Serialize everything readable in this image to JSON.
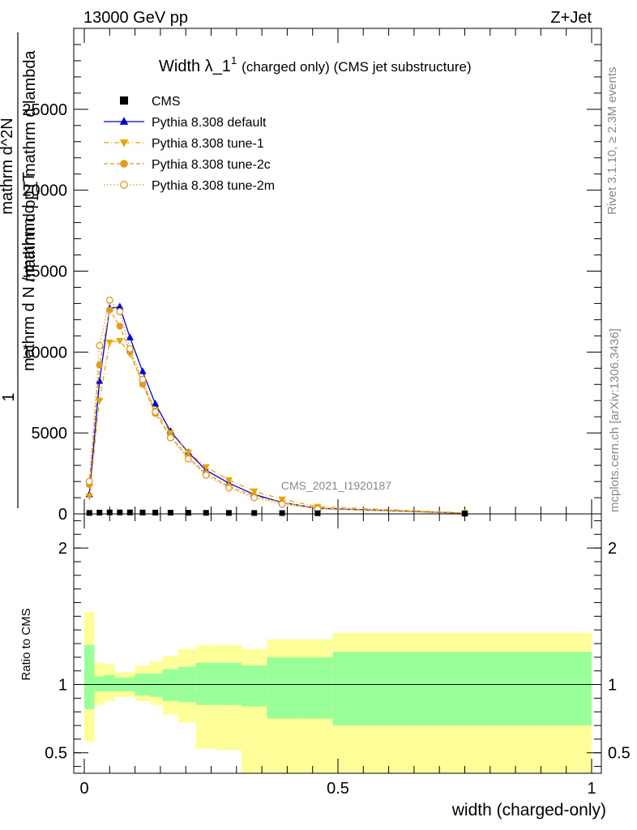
{
  "header": {
    "left": "13000 GeV pp",
    "right": "Z+Jet"
  },
  "side_labels": {
    "rivet": "Rivet 3.1.10, ≥ 2.3M events",
    "mcplots": "mcplots.cern.ch [arXiv:1306.3436]"
  },
  "chart_data": [
    {
      "type": "scatter",
      "title_main": "Width λ_1",
      "title_sup": "1",
      "title_rest": "(charged only) (CMS jet substructure)",
      "watermark": "CMS_2021_I1920187",
      "ylabel_lines": [
        "1",
        "mathrm d N / mathrm d p_T",
        "mathrm d^2N",
        "mathrm d p_T mathrm d lambda"
      ],
      "ylabel_sub": "T",
      "xlim": [
        0,
        1
      ],
      "ylim": [
        0,
        30000
      ],
      "yticks": [
        {
          "v": 0,
          "label": "0"
        },
        {
          "v": 5000,
          "label": "5000"
        },
        {
          "v": 10000,
          "label": "10000"
        },
        {
          "v": 15000,
          "label": "15000"
        },
        {
          "v": 20000,
          "label": "20000"
        },
        {
          "v": 25000,
          "label": "25000"
        }
      ],
      "x": [
        0.01,
        0.03,
        0.05,
        0.07,
        0.09,
        0.115,
        0.14,
        0.17,
        0.205,
        0.24,
        0.285,
        0.335,
        0.39,
        0.46,
        0.75
      ],
      "series": [
        {
          "name": "CMS",
          "color": "#000000",
          "marker": "square",
          "values": [
            60,
            80,
            90,
            90,
            90,
            85,
            80,
            75,
            70,
            65,
            60,
            55,
            50,
            40,
            20
          ]
        },
        {
          "name": "Pythia 8.308 default",
          "color": "#0000cc",
          "marker": "triangle-up",
          "line": "solid",
          "values": [
            1200,
            8200,
            12700,
            12800,
            10900,
            8800,
            6800,
            5100,
            3800,
            2700,
            1900,
            1200,
            700,
            350,
            40
          ]
        },
        {
          "name": "Pythia 8.308 tune-1",
          "color": "#e6a800",
          "marker": "triangle-down",
          "line": "dashdot",
          "values": [
            1100,
            7000,
            10600,
            10700,
            9900,
            8100,
            6400,
            5000,
            3800,
            2900,
            2100,
            1400,
            900,
            450,
            60
          ]
        },
        {
          "name": "Pythia 8.308 tune-2c",
          "color": "#e09a20",
          "marker": "circle",
          "line": "dashed",
          "values": [
            1800,
            9200,
            12600,
            11600,
            10000,
            8000,
            6200,
            4800,
            3500,
            2500,
            1700,
            1100,
            700,
            350,
            45
          ]
        },
        {
          "name": "Pythia 8.308 tune-2m",
          "color": "#e09a20",
          "marker": "circle-open",
          "line": "dotted",
          "values": [
            2000,
            10400,
            13200,
            12500,
            10200,
            8300,
            6300,
            4700,
            3400,
            2400,
            1600,
            1000,
            600,
            300,
            40
          ]
        }
      ]
    },
    {
      "type": "area",
      "ylabel": "Ratio to CMS",
      "xlabel": "width (charged-only)",
      "xlim": [
        0,
        1
      ],
      "ylim": [
        0.35,
        2.25
      ],
      "xticks": [
        {
          "v": 0,
          "label": "0"
        },
        {
          "v": 0.5,
          "label": "0.5"
        },
        {
          "v": 1,
          "label": "1"
        }
      ],
      "yticks": [
        {
          "v": 0.5,
          "label": "0.5"
        },
        {
          "v": 1,
          "label": "1"
        },
        {
          "v": 2,
          "label": "2"
        }
      ],
      "bins": [
        {
          "x0": 0.0,
          "x1": 0.02,
          "g_lo": 0.82,
          "g_hi": 1.29,
          "y_lo": 0.58,
          "y_hi": 1.53
        },
        {
          "x0": 0.02,
          "x1": 0.04,
          "g_lo": 0.95,
          "g_hi": 1.06,
          "y_lo": 0.85,
          "y_hi": 1.16
        },
        {
          "x0": 0.04,
          "x1": 0.06,
          "g_lo": 0.95,
          "g_hi": 1.07,
          "y_lo": 0.88,
          "y_hi": 1.15
        },
        {
          "x0": 0.06,
          "x1": 0.08,
          "g_lo": 0.95,
          "g_hi": 1.05,
          "y_lo": 0.91,
          "y_hi": 1.09
        },
        {
          "x0": 0.08,
          "x1": 0.1,
          "g_lo": 0.95,
          "g_hi": 1.05,
          "y_lo": 0.91,
          "y_hi": 1.09
        },
        {
          "x0": 0.1,
          "x1": 0.13,
          "g_lo": 0.92,
          "g_hi": 1.08,
          "y_lo": 0.88,
          "y_hi": 1.14
        },
        {
          "x0": 0.13,
          "x1": 0.155,
          "g_lo": 0.91,
          "g_hi": 1.08,
          "y_lo": 0.85,
          "y_hi": 1.17
        },
        {
          "x0": 0.155,
          "x1": 0.185,
          "g_lo": 0.88,
          "g_hi": 1.11,
          "y_lo": 0.78,
          "y_hi": 1.21
        },
        {
          "x0": 0.185,
          "x1": 0.22,
          "g_lo": 0.87,
          "g_hi": 1.13,
          "y_lo": 0.72,
          "y_hi": 1.26
        },
        {
          "x0": 0.22,
          "x1": 0.26,
          "g_lo": 0.85,
          "g_hi": 1.16,
          "y_lo": 0.53,
          "y_hi": 1.29
        },
        {
          "x0": 0.26,
          "x1": 0.31,
          "g_lo": 0.85,
          "g_hi": 1.16,
          "y_lo": 0.52,
          "y_hi": 1.29
        },
        {
          "x0": 0.31,
          "x1": 0.36,
          "g_lo": 0.84,
          "g_hi": 1.14,
          "y_lo": 0.35,
          "y_hi": 1.26
        },
        {
          "x0": 0.36,
          "x1": 0.42,
          "g_lo": 0.75,
          "g_hi": 1.2,
          "y_lo": 0.35,
          "y_hi": 1.33
        },
        {
          "x0": 0.42,
          "x1": 0.49,
          "g_lo": 0.75,
          "g_hi": 1.2,
          "y_lo": 0.35,
          "y_hi": 1.33
        },
        {
          "x0": 0.49,
          "x1": 1.0,
          "g_lo": 0.7,
          "g_hi": 1.24,
          "y_lo": 0.35,
          "y_hi": 1.38
        }
      ],
      "reference_line": 1,
      "colors": {
        "green": "#99ff99",
        "yellow": "#ffff99"
      }
    }
  ]
}
